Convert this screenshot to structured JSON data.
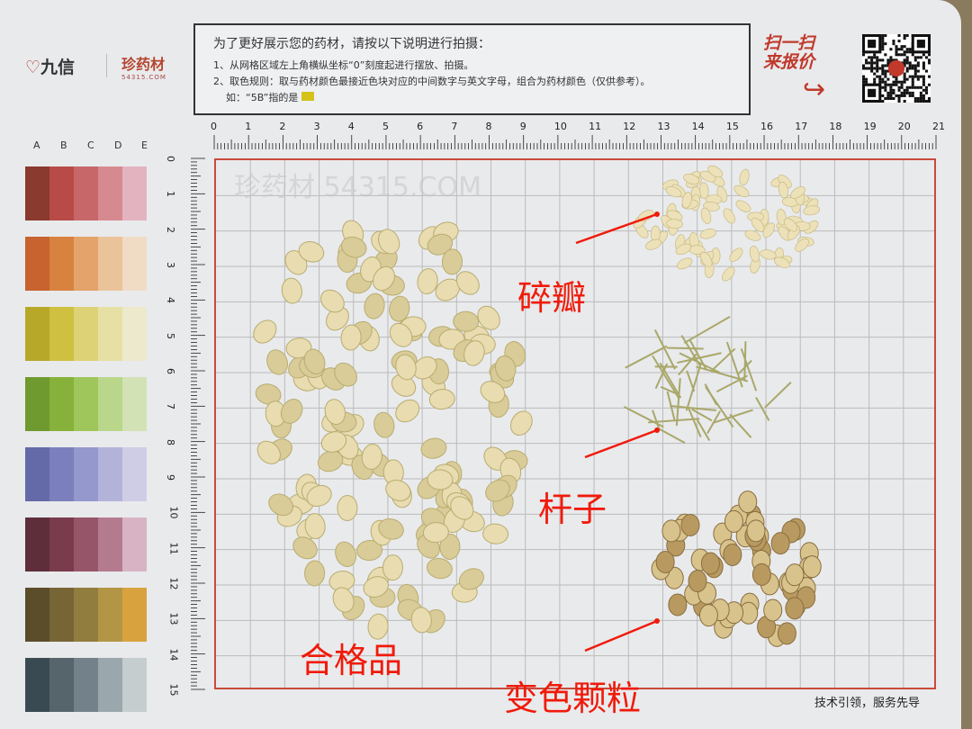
{
  "logo": {
    "brand": "九信",
    "partner": "珍药材",
    "partner_domain": "54315.COM"
  },
  "instructions": {
    "title": "为了更好展示您的药材，请按以下说明进行拍摄：",
    "line1": "1、从网格区域左上角横纵坐标“0”刻度起进行摆放、拍摄。",
    "line2": "2、取色规则：取与药材颜色最接近色块对应的中间数字与英文字母，组合为药材颜色（仅供参考）。",
    "line3": "如：“5B”指的是",
    "example_color": "#d4c21a"
  },
  "scan": {
    "line1": "扫一扫",
    "line2": "来报价",
    "icon": "curved-arrow-icon",
    "qr_icon": "qr-code-icon"
  },
  "ruler": {
    "x_labels": [
      "0",
      "1",
      "2",
      "3",
      "4",
      "5",
      "6",
      "7",
      "8",
      "9",
      "10",
      "11",
      "12",
      "13",
      "14",
      "15",
      "16",
      "17",
      "18",
      "19",
      "20",
      "21"
    ],
    "y_labels": [
      "0",
      "1",
      "2",
      "3",
      "4",
      "5",
      "6",
      "7",
      "8",
      "9",
      "10",
      "11",
      "12",
      "13",
      "14",
      "15"
    ]
  },
  "swatch_columns": [
    "A",
    "B",
    "C",
    "D",
    "E"
  ],
  "swatches": [
    [
      "#8a3a2e",
      "#b84b47",
      "#c8676a",
      "#d68a90",
      "#e3b3c0"
    ],
    [
      "#c8622f",
      "#d8823f",
      "#e3a36a",
      "#ebc39a",
      "#f0dcc5"
    ],
    [
      "#b8a82a",
      "#cfc040",
      "#ddd276",
      "#e6e0a5",
      "#ece9cc"
    ],
    [
      "#6f9a2f",
      "#86b23c",
      "#9fc65a",
      "#b9d68a",
      "#d2e2b5"
    ],
    [
      "#6469a8",
      "#7b80bd",
      "#9598cc",
      "#b3b3da",
      "#cfcde6"
    ],
    [
      "#5e2e3a",
      "#7a3c4c",
      "#975569",
      "#b47b8e",
      "#d7b3c3"
    ],
    [
      "#5b4c2a",
      "#776536",
      "#917d3e",
      "#b39645",
      "#d8a33f"
    ],
    [
      "#3a4a52",
      "#56656c",
      "#73828a",
      "#9aa7ac",
      "#c5cdcf"
    ]
  ],
  "annotations": {
    "broken_petals": "碎瓣",
    "stems": "杆子",
    "qualified": "合格品",
    "discolored": "变色颗粒",
    "color": "#f01a0a"
  },
  "watermark": "珍药材 54315.COM",
  "footer": "技术引领，服务先导"
}
